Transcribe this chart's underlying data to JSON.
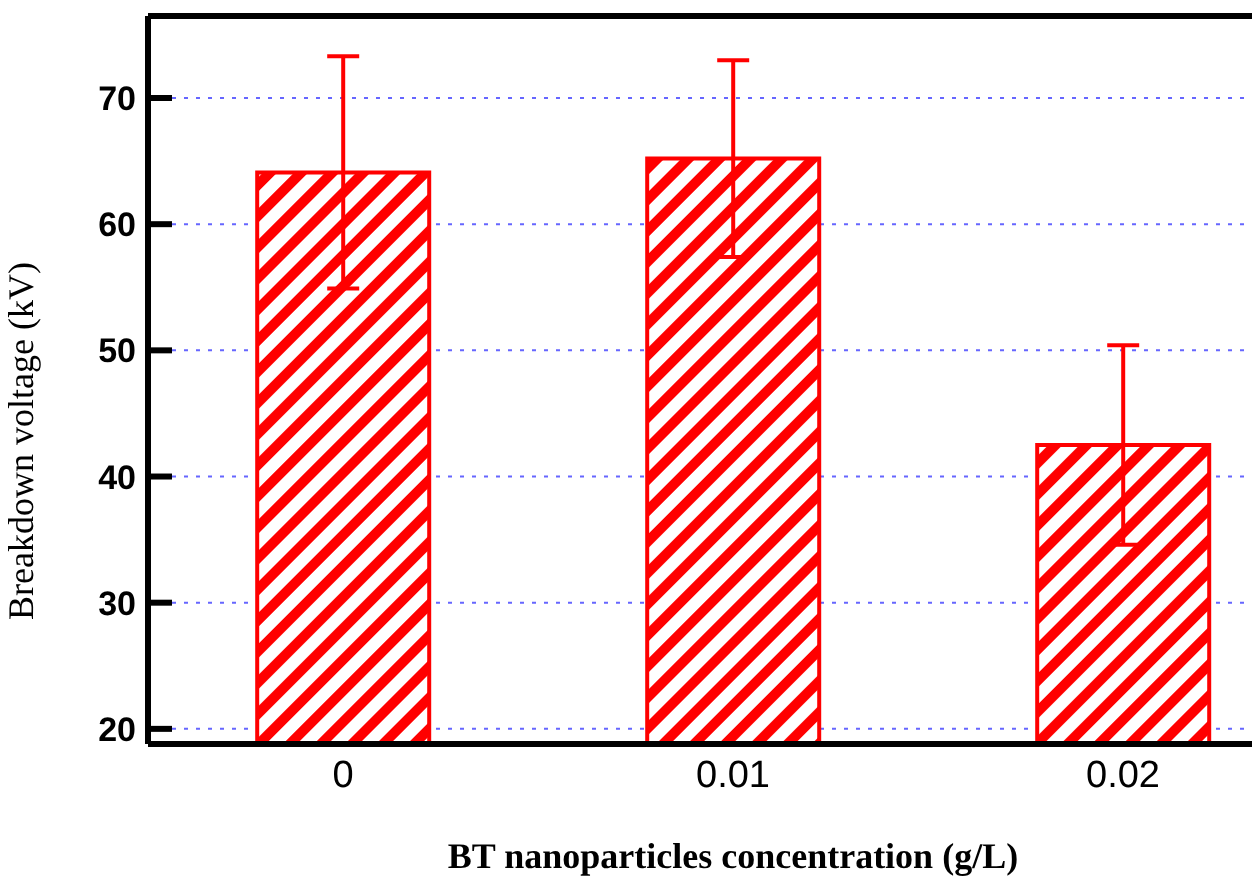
{
  "chart_data": {
    "type": "bar",
    "xlabel": "BT nanoparticles concentration (g/L)",
    "ylabel": "Breakdown voltage (kV)",
    "categories": [
      "0",
      "0.01",
      "0.02"
    ],
    "series": [
      {
        "color": "#ff0000",
        "values": [
          64.1,
          65.2,
          42.5
        ],
        "errors": [
          9.2,
          7.8,
          7.9
        ]
      }
    ],
    "ylim": [
      18.8,
      76.5
    ],
    "yticks": [
      20,
      30,
      40,
      50,
      60,
      70
    ],
    "grid": "y",
    "legend": false
  }
}
